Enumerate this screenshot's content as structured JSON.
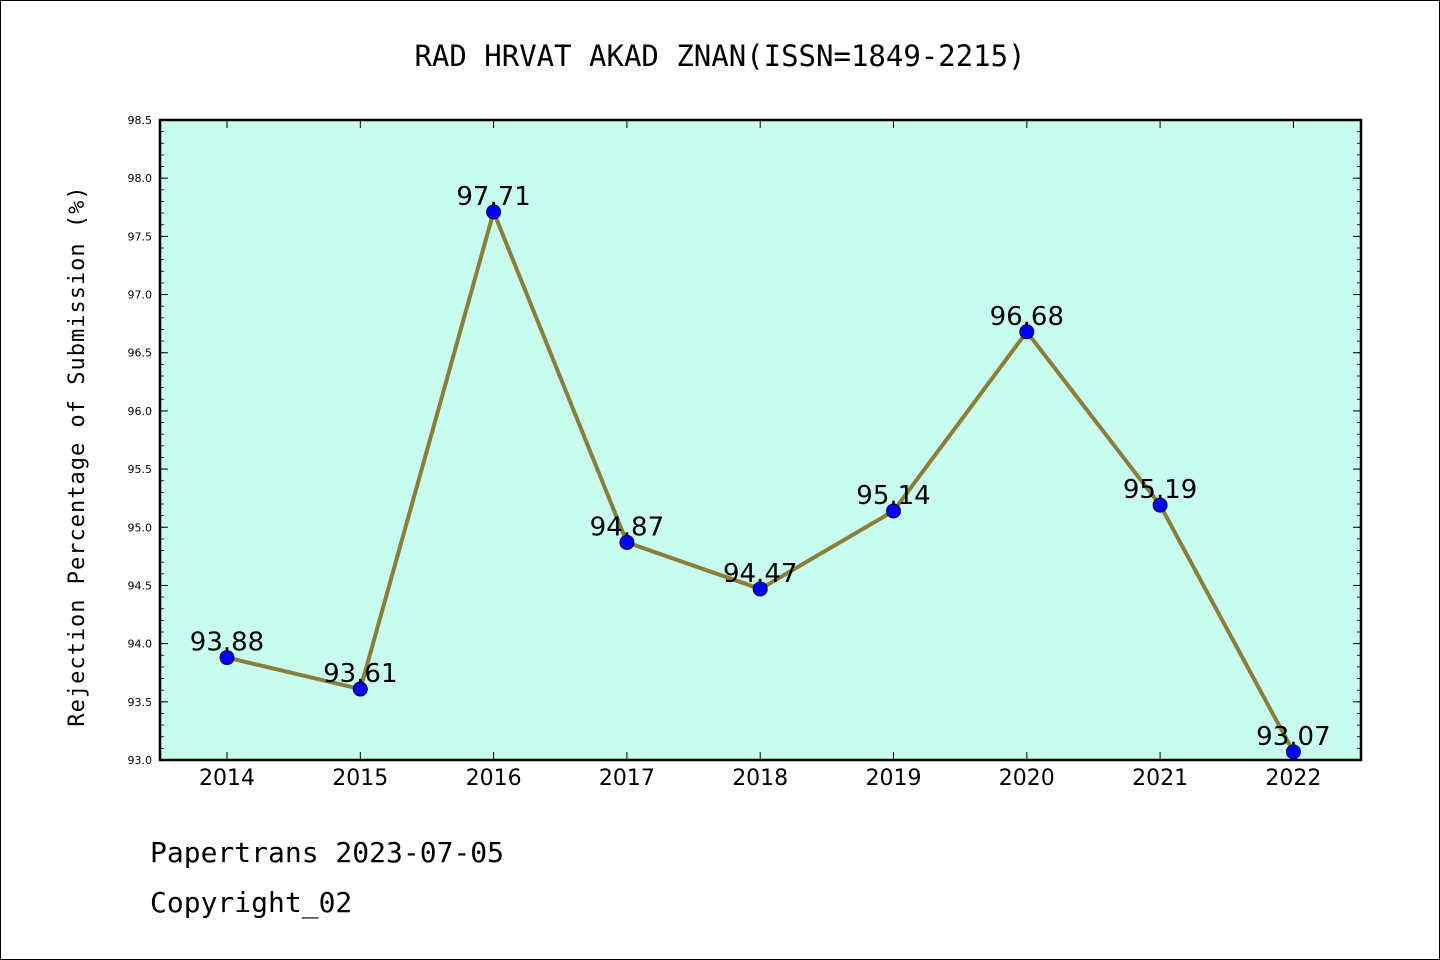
{
  "chart_data": {
    "type": "line",
    "title": "RAD HRVAT AKAD ZNAN(ISSN=1849-2215)",
    "xlabel": "",
    "ylabel": "Rejection Percentage of Submission (%)",
    "categories": [
      "2014",
      "2015",
      "2016",
      "2017",
      "2018",
      "2019",
      "2020",
      "2021",
      "2022"
    ],
    "values": [
      93.88,
      93.61,
      97.71,
      94.87,
      94.47,
      95.14,
      96.68,
      95.19,
      93.07
    ],
    "data_labels": [
      "93.88",
      "93.61",
      "97.71",
      "94.87",
      "94.47",
      "95.14",
      "96.68",
      "95.19",
      "93.07"
    ],
    "ylim": [
      93.0,
      98.5
    ],
    "yticks": [
      "93.0",
      "93.5",
      "94.0",
      "94.5",
      "95.0",
      "95.5",
      "96.0",
      "96.5",
      "97.0",
      "97.5",
      "98.0",
      "98.5"
    ],
    "grid": false,
    "colors": {
      "plot_background": "#c8fcee",
      "line": "#8b7d3a",
      "marker": "#0000ff"
    }
  },
  "footer": {
    "line1": "Papertrans 2023-07-05",
    "line2": "Copyright_02"
  }
}
